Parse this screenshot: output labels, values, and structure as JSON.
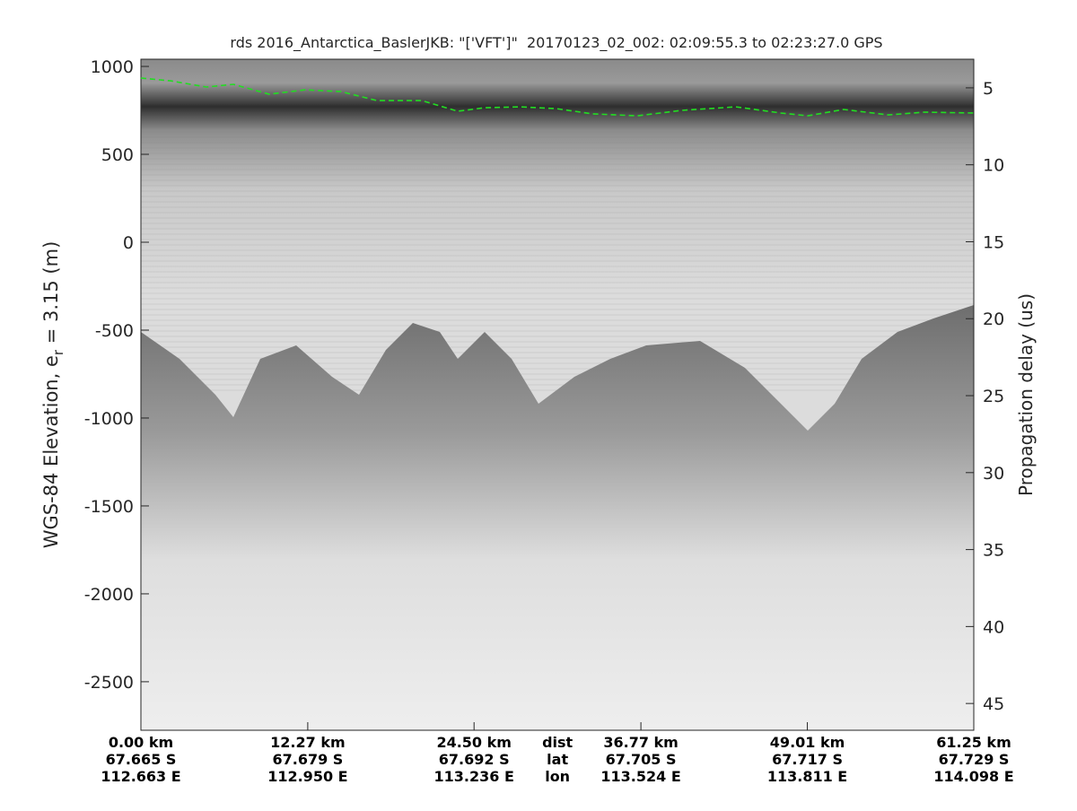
{
  "chart_data": {
    "type": "echogram",
    "title": "rds 2016_Antarctica_BaslerJKB: \"['VFT']\"  20170123_02_002: 02:09:55.3 to 02:23:27.0 GPS",
    "y_label": "WGS-84 Elevation, e",
    "y_label_sub": "r",
    "y_label_end": " = 3.15 (m)",
    "y2_label": "Propagation delay (us)",
    "xlim": [
      0,
      61.25
    ],
    "xticks": [
      {
        "value": 0,
        "label": "0.00 km"
      },
      {
        "value": 12.27,
        "label": "12.27 km"
      },
      {
        "value": 24.5,
        "label": "24.50 km"
      },
      {
        "value": 36.77,
        "label": "36.77 km"
      },
      {
        "value": 49.01,
        "label": "49.01 km"
      },
      {
        "value": 61.25,
        "label": "61.25 km"
      }
    ],
    "lat_labels": [
      "67.665 S",
      "67.679 S",
      "67.692 S",
      "67.705 S",
      "67.717 S",
      "67.729 S"
    ],
    "lon_labels": [
      "112.663 E",
      "112.950 E",
      "113.236 E",
      "113.524 E",
      "113.811 E",
      "114.098 E"
    ],
    "row_names": [
      "dist",
      "lat",
      "lon"
    ],
    "ylim": [
      -2776,
      1041
    ],
    "yticks": [
      -2500,
      -2000,
      -1500,
      -1000,
      -500,
      0,
      500,
      1000
    ],
    "y2lim": [
      46.74,
      3.14
    ],
    "y2ticks": [
      5,
      10,
      15,
      20,
      25,
      30,
      35,
      40,
      45
    ],
    "series": [
      {
        "name": "surface",
        "color": "#22dd22",
        "x": [
          0,
          2.18,
          4.82,
          6.8,
          9.44,
          12.08,
          14.72,
          17.36,
          20.66,
          23.3,
          25.28,
          27.92,
          30.56,
          33.2,
          36.5,
          39.8,
          43.76,
          47.06,
          49.04,
          51.68,
          54.98,
          57.62,
          61.25
        ],
        "values": [
          934,
          918,
          883,
          898,
          842,
          867,
          857,
          806,
          806,
          745,
          765,
          770,
          760,
          730,
          719,
          750,
          770,
          735,
          719,
          755,
          724,
          740,
          735
        ]
      }
    ]
  }
}
